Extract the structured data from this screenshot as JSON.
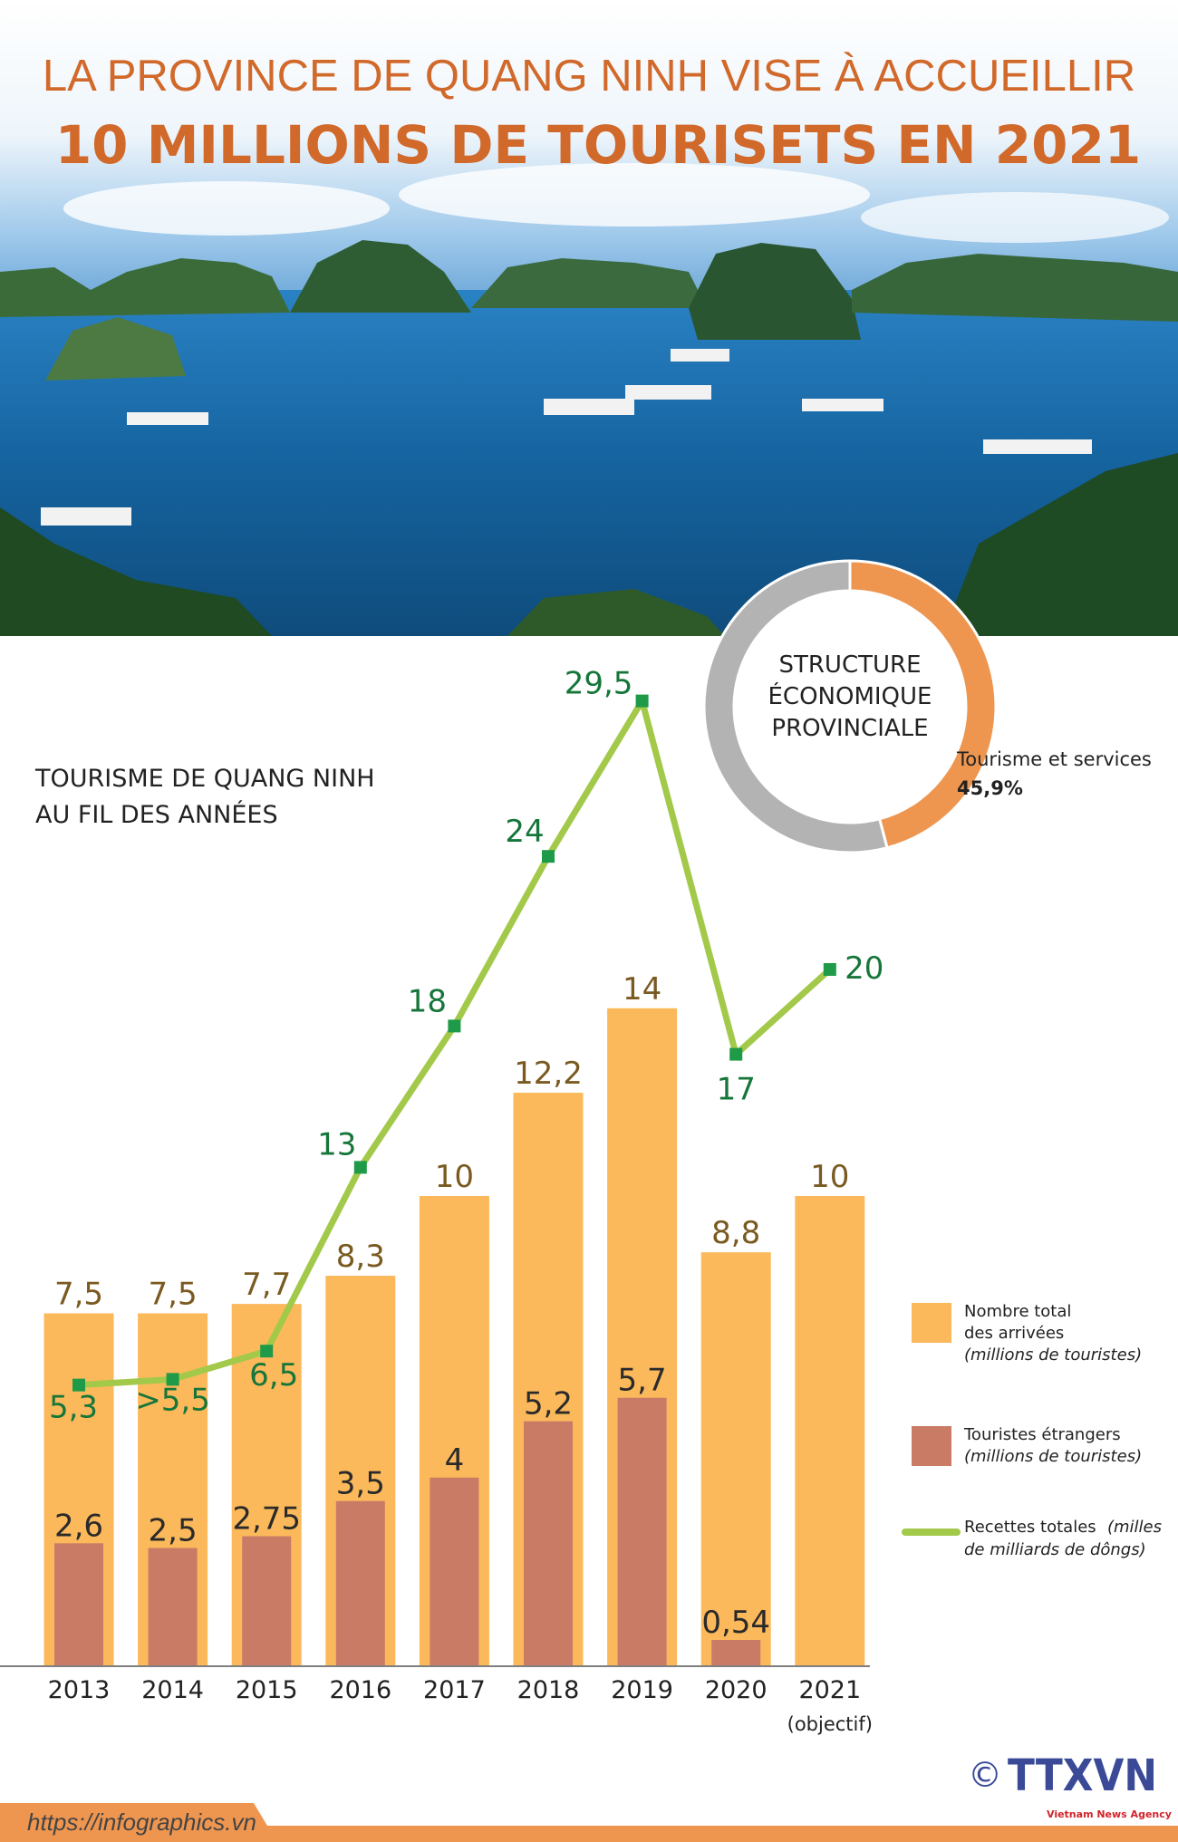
{
  "header": {
    "title_line1": "LA PROVINCE DE QUANG NINH VISE À ACCUEILLIR",
    "title_line2": "10 MILLIONS DE TOURISETS EN 2021"
  },
  "colors": {
    "title": "#D1692B",
    "total_bar": "#FBB95B",
    "foreign_bar": "#C97B66",
    "revenue_line": "#A3C94A",
    "revenue_marker": "#1E9A48",
    "donut_tourism": "#EE9650",
    "donut_other": "#B3B3B3",
    "footer": "#EE9650",
    "logo": "#3A4A97"
  },
  "donut": {
    "title_lines": [
      "STRUCTURE",
      "ÉCONOMIQUE",
      "PROVINCIALE"
    ],
    "label": "Tourisme et services",
    "value_label": "45,9%",
    "value": 45.9
  },
  "chart_data": {
    "type": "bar+line",
    "title_lines": [
      "TOURISME DE QUANG NINH",
      "AU FIL DES ANNÉES"
    ],
    "categories": [
      "2013",
      "2014",
      "2015",
      "2016",
      "2017",
      "2018",
      "2019",
      "2020",
      "2021"
    ],
    "category_notes": [
      "",
      "",
      "",
      "",
      "",
      "",
      "",
      "",
      "(objectif)"
    ],
    "series": [
      {
        "name": "Nombre total des arrivées (millions de touristes)",
        "type": "bar",
        "values": [
          7.5,
          7.5,
          7.7,
          8.3,
          10,
          12.2,
          14,
          8.8,
          10
        ],
        "labels": [
          "7,5",
          "7,5",
          "7,7",
          "8,3",
          "10",
          "12,2",
          "14",
          "8,8",
          "10"
        ]
      },
      {
        "name": "Touristes étrangers (millions de touristes)",
        "type": "bar",
        "values": [
          2.6,
          2.5,
          2.75,
          3.5,
          4,
          5.2,
          5.7,
          0.54,
          null
        ],
        "labels": [
          "2,6",
          "2,5",
          "2,75",
          "3,5",
          "4",
          "5,2",
          "5,7",
          "0,54",
          ""
        ]
      },
      {
        "name": "Recettes totales (milles de milliards de dôngs)",
        "type": "line",
        "values": [
          5.3,
          5.5,
          6.5,
          13,
          18,
          24,
          29.5,
          17,
          20
        ],
        "labels": [
          "5,3",
          ">5,5",
          "6,5",
          "13",
          "18",
          "24",
          "29,5",
          "17",
          "20"
        ]
      }
    ],
    "legend": [
      {
        "lines": [
          "Nombre total",
          "des arrivées"
        ],
        "italic": "(millions de touristes)"
      },
      {
        "lines": [
          "Touristes étrangers"
        ],
        "italic": "(millions de touristes)"
      },
      {
        "lines": [
          "Recettes totales"
        ],
        "italic_inline": "(milles",
        "italic": "de milliards de dôngs)"
      }
    ],
    "legend_position": "right",
    "grid": false
  },
  "footer": {
    "url": "https://infographics.vn",
    "copyright": "©",
    "logo_text": "TTXVN",
    "logo_sub": "Vietnam News Agency"
  }
}
